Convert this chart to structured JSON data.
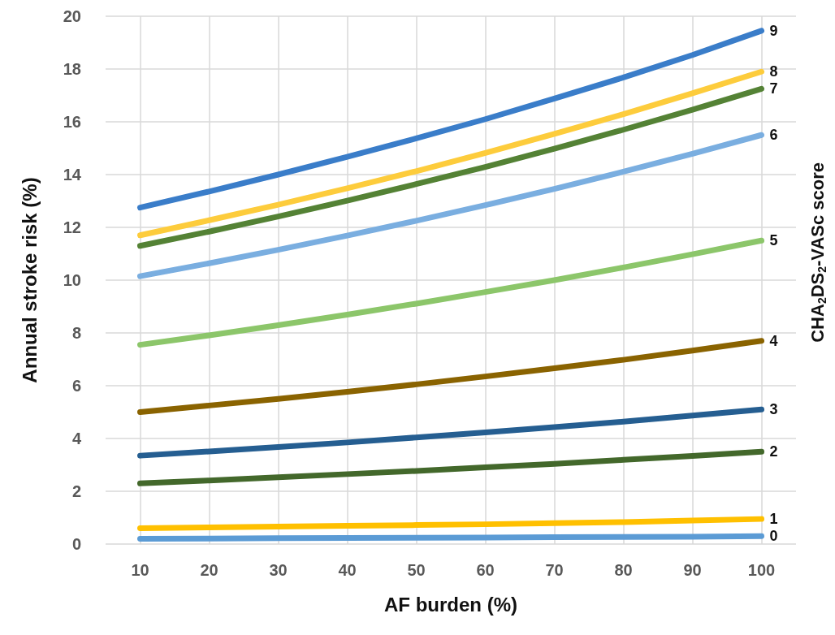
{
  "chart_data": {
    "type": "line",
    "xlabel": "AF burden (%)",
    "ylabel": "Annual stroke risk (%)",
    "y2label": "CHA$_{2}$DS$_{2}$-VASc score",
    "x": [
      10,
      20,
      30,
      40,
      50,
      60,
      70,
      80,
      90,
      100
    ],
    "xlim": [
      5,
      105
    ],
    "xticks": [
      10,
      20,
      30,
      40,
      50,
      60,
      70,
      80,
      90,
      100
    ],
    "ylim": [
      0,
      20
    ],
    "yticks": [
      0,
      2,
      4,
      6,
      8,
      10,
      12,
      14,
      16,
      18,
      20
    ],
    "grid": true,
    "legend": false,
    "marker": "none",
    "line_style": "solid",
    "series": [
      {
        "name": "0",
        "color": "#5b9bd5",
        "values": [
          0.2,
          0.21,
          0.22,
          0.23,
          0.24,
          0.25,
          0.26,
          0.27,
          0.28,
          0.3
        ]
      },
      {
        "name": "1",
        "color": "#ffc000",
        "values": [
          0.6,
          0.63,
          0.66,
          0.69,
          0.72,
          0.75,
          0.79,
          0.83,
          0.89,
          0.95
        ]
      },
      {
        "name": "2",
        "color": "#43682b",
        "values": [
          2.3,
          2.41,
          2.53,
          2.65,
          2.77,
          2.91,
          3.04,
          3.19,
          3.34,
          3.5
        ]
      },
      {
        "name": "3",
        "color": "#255e91",
        "values": [
          3.35,
          3.51,
          3.68,
          3.85,
          4.04,
          4.23,
          4.43,
          4.64,
          4.87,
          5.1
        ]
      },
      {
        "name": "4",
        "color": "#8a6300",
        "values": [
          5.0,
          5.25,
          5.5,
          5.77,
          6.05,
          6.35,
          6.66,
          6.98,
          7.33,
          7.7
        ]
      },
      {
        "name": "5",
        "color": "#8cc66a",
        "values": [
          7.55,
          7.91,
          8.29,
          8.69,
          9.11,
          9.55,
          10.0,
          10.48,
          10.98,
          11.5
        ]
      },
      {
        "name": "6",
        "color": "#7aaee0",
        "values": [
          10.15,
          10.64,
          11.15,
          11.69,
          12.25,
          12.84,
          13.46,
          14.11,
          14.79,
          15.5
        ]
      },
      {
        "name": "7",
        "color": "#548235",
        "values": [
          11.3,
          11.84,
          12.41,
          13.01,
          13.64,
          14.29,
          14.98,
          15.7,
          16.46,
          17.25
        ]
      },
      {
        "name": "8",
        "color": "#fdcc3c",
        "values": [
          11.7,
          12.27,
          12.86,
          13.48,
          14.13,
          14.82,
          15.54,
          16.29,
          17.08,
          17.9
        ]
      },
      {
        "name": "9",
        "color": "#3a7dc9",
        "values": [
          12.75,
          13.36,
          14.0,
          14.67,
          15.37,
          16.1,
          16.88,
          17.68,
          18.53,
          19.45
        ]
      }
    ]
  }
}
